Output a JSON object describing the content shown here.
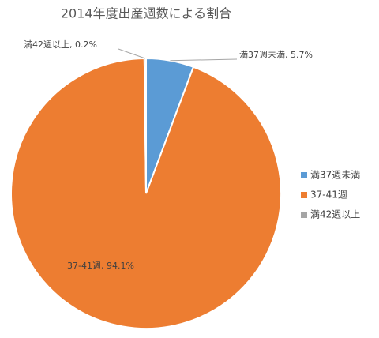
{
  "chart_data": {
    "type": "pie",
    "title": "2014年度出産週数による割合",
    "categories": [
      "満37週未満",
      "37-41週",
      "満42週以上"
    ],
    "values": [
      5.7,
      94.1,
      0.2
    ],
    "value_labels": [
      "満37週未満, 5.7%",
      "37-41週, 94.1%",
      "満42週以上, 0.2%"
    ],
    "colors": [
      "#5b9bd5",
      "#ed7d31",
      "#a5a5a5"
    ],
    "legend": "right"
  }
}
